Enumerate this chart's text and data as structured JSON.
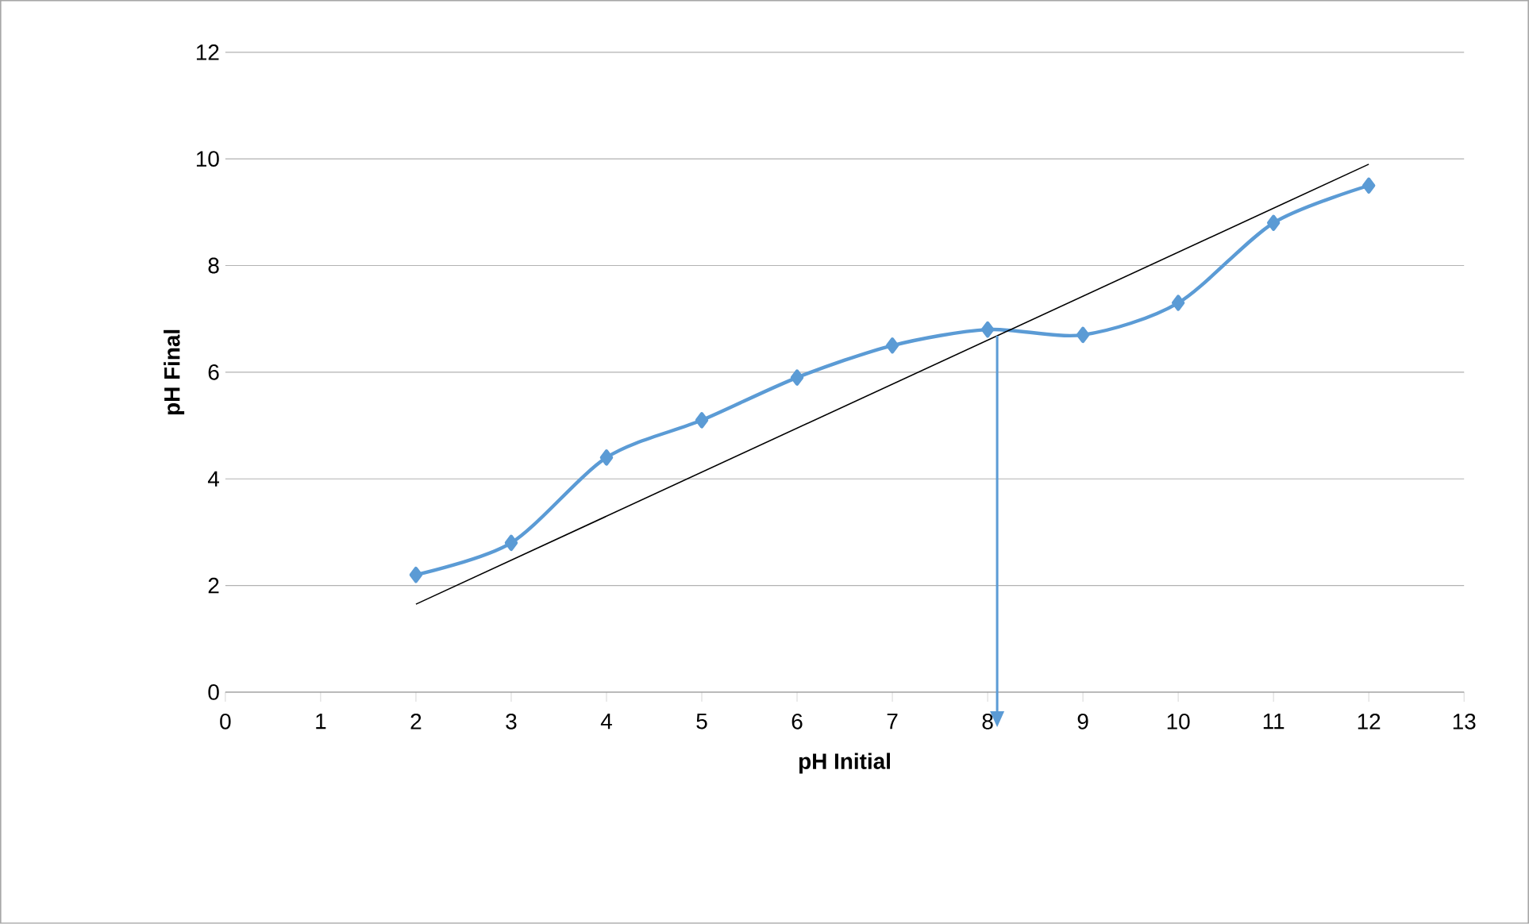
{
  "chart_data": {
    "type": "line",
    "xlabel": "pH Initial",
    "ylabel": "pH Final",
    "xlim": [
      0,
      13
    ],
    "ylim": [
      0,
      12
    ],
    "xticks": [
      0,
      1,
      2,
      3,
      4,
      5,
      6,
      7,
      8,
      9,
      10,
      11,
      12,
      13
    ],
    "yticks": [
      0,
      2,
      4,
      6,
      8,
      10,
      12
    ],
    "grid": "y",
    "marker": "diamond",
    "line_style": "solid",
    "series": [
      {
        "color": "#5b9bd5",
        "x": [
          2,
          3,
          4,
          5,
          6,
          7,
          8,
          9,
          10,
          11,
          12
        ],
        "values": [
          2.2,
          2.8,
          4.4,
          5.1,
          5.9,
          6.5,
          6.8,
          6.7,
          7.3,
          8.8,
          9.5
        ]
      },
      {
        "type": "line",
        "color": "#000000",
        "marker": "none",
        "x": [
          2,
          12
        ],
        "values": [
          1.65,
          9.9
        ]
      }
    ],
    "ref_lines": [
      {
        "axis": "x",
        "value": 8.1,
        "color": "#5b9bd5",
        "line_style": "solid"
      }
    ]
  }
}
